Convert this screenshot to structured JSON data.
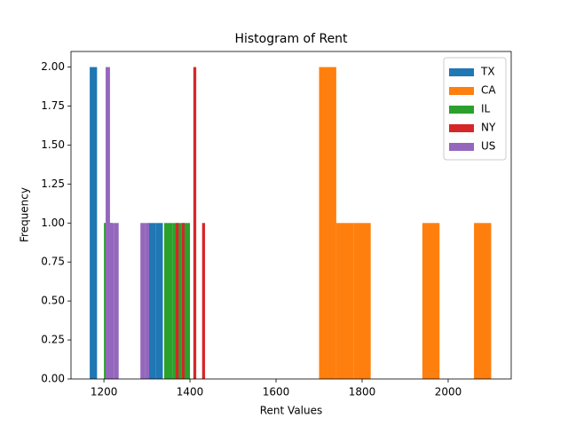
{
  "chart_data": {
    "type": "histogram",
    "title": "Histogram of Rent",
    "xlabel": "Rent Values",
    "ylabel": "Frequency",
    "series": [
      {
        "name": "TX",
        "color": "#1f77b4",
        "bins": [
          1167,
          1184,
          1201,
          1218,
          1235,
          1252,
          1269,
          1286,
          1303,
          1320,
          1337
        ],
        "values": [
          2,
          0,
          1,
          0,
          0,
          0,
          0,
          0,
          1,
          1
        ]
      },
      {
        "name": "CA",
        "color": "#ff7f0e",
        "bins": [
          1700,
          1740,
          1780,
          1820,
          1860,
          1900,
          1940,
          1980,
          2020,
          2060,
          2100
        ],
        "values": [
          2,
          1,
          1,
          0,
          0,
          0,
          1,
          0,
          0,
          1
        ]
      },
      {
        "name": "IL",
        "color": "#2ca02c",
        "bins": [
          1200,
          1220,
          1240,
          1260,
          1280,
          1300,
          1320,
          1340,
          1360,
          1380,
          1400
        ],
        "values": [
          1,
          0,
          0,
          0,
          0,
          0,
          0,
          1,
          1,
          1
        ]
      },
      {
        "name": "NY",
        "color": "#d62728",
        "bins": [
          1367,
          1373.8,
          1380.6,
          1387.4,
          1394.2,
          1401,
          1407.8,
          1414.6,
          1421.4,
          1428.2,
          1435
        ],
        "values": [
          1,
          0,
          1,
          0,
          0,
          0,
          2,
          0,
          0,
          1
        ]
      },
      {
        "name": "US",
        "color": "#9467bd",
        "bins": [
          1204,
          1214.1,
          1224.2,
          1234.3,
          1244.4,
          1254.5,
          1264.6,
          1274.7,
          1284.8,
          1294.9,
          1305
        ],
        "values": [
          2,
          1,
          1,
          0,
          0,
          0,
          0,
          0,
          1,
          1
        ]
      }
    ],
    "xlim": [
      1123.5,
      2146.5
    ],
    "xticks": [
      1200,
      1400,
      1600,
      1800,
      2000
    ],
    "ylim": [
      0,
      2.1
    ],
    "yticks": [
      {
        "value": 0,
        "label": "0.00"
      },
      {
        "value": 0.25,
        "label": "0.25"
      },
      {
        "value": 0.5,
        "label": "0.50"
      },
      {
        "value": 0.75,
        "label": "0.75"
      },
      {
        "value": 1,
        "label": "1.00"
      },
      {
        "value": 1.25,
        "label": "1.25"
      },
      {
        "value": 1.5,
        "label": "1.50"
      },
      {
        "value": 1.75,
        "label": "1.75"
      },
      {
        "value": 2,
        "label": "2.00"
      }
    ],
    "legend": "upper right",
    "grid": false
  }
}
